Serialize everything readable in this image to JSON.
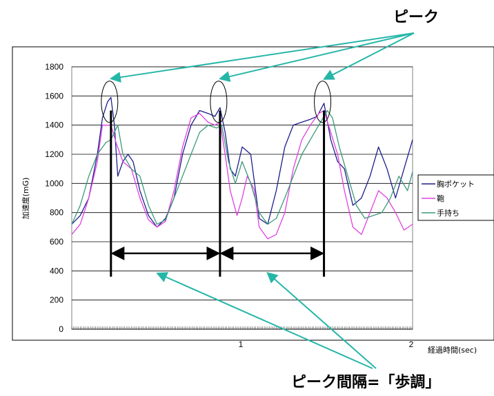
{
  "callouts": {
    "peak": "ピーク",
    "interval": "ピーク間隔=「歩調」"
  },
  "colors": {
    "chest_pocket": "#1c1c8c",
    "bag": "#e040e0",
    "handheld": "#3a9a78",
    "arrow": "#25b6a8"
  },
  "chart_data": {
    "type": "line",
    "title": "",
    "xlabel": "経過時間(sec)",
    "ylabel": "加速度(mG)",
    "xlim": [
      0,
      2
    ],
    "ylim": [
      0,
      1800
    ],
    "y_ticks": [
      "0",
      "200",
      "400",
      "600",
      "800",
      "1000",
      "1200",
      "1400",
      "1600",
      "1800"
    ],
    "x_ticks": [
      "1",
      "2"
    ],
    "grid": "horizontal",
    "legend_position": "right",
    "peak_times": [
      0.23,
      0.87,
      1.48
    ],
    "series": [
      {
        "name": "胸ポケット",
        "x": [
          0,
          0.05,
          0.1,
          0.15,
          0.18,
          0.21,
          0.23,
          0.25,
          0.27,
          0.3,
          0.33,
          0.36,
          0.4,
          0.45,
          0.5,
          0.55,
          0.6,
          0.65,
          0.7,
          0.75,
          0.8,
          0.84,
          0.87,
          0.9,
          0.93,
          0.96,
          1.0,
          1.05,
          1.1,
          1.15,
          1.2,
          1.25,
          1.3,
          1.35,
          1.4,
          1.44,
          1.48,
          1.52,
          1.56,
          1.6,
          1.65,
          1.7,
          1.75,
          1.8,
          1.85,
          1.9,
          1.95,
          2.0
        ],
        "y": [
          720,
          780,
          900,
          1200,
          1450,
          1560,
          1590,
          1400,
          1050,
          1150,
          1200,
          1150,
          950,
          780,
          700,
          760,
          900,
          1200,
          1400,
          1500,
          1480,
          1460,
          1520,
          1350,
          1100,
          1050,
          1250,
          1200,
          760,
          720,
          950,
          1250,
          1400,
          1420,
          1440,
          1460,
          1550,
          1300,
          1150,
          1100,
          850,
          900,
          1050,
          1250,
          1100,
          900,
          1100,
          1300
        ]
      },
      {
        "name": "鞄",
        "x": [
          0,
          0.05,
          0.1,
          0.15,
          0.18,
          0.21,
          0.23,
          0.26,
          0.3,
          0.35,
          0.4,
          0.45,
          0.5,
          0.55,
          0.6,
          0.65,
          0.7,
          0.75,
          0.8,
          0.84,
          0.87,
          0.9,
          0.93,
          0.97,
          1.0,
          1.03,
          1.07,
          1.1,
          1.15,
          1.2,
          1.25,
          1.3,
          1.35,
          1.4,
          1.45,
          1.48,
          1.52,
          1.56,
          1.6,
          1.65,
          1.7,
          1.75,
          1.8,
          1.85,
          1.9,
          1.95,
          2.0
        ],
        "y": [
          650,
          720,
          900,
          1150,
          1400,
          1400,
          1400,
          1280,
          1150,
          1100,
          900,
          750,
          700,
          740,
          950,
          1250,
          1450,
          1480,
          1420,
          1400,
          1420,
          1200,
          950,
          780,
          900,
          1050,
          960,
          700,
          620,
          650,
          800,
          1100,
          1300,
          1400,
          1480,
          1500,
          1350,
          1200,
          950,
          700,
          650,
          800,
          950,
          900,
          800,
          680,
          720
        ]
      },
      {
        "name": "手持ち",
        "x": [
          0,
          0.05,
          0.1,
          0.15,
          0.2,
          0.23,
          0.27,
          0.3,
          0.35,
          0.4,
          0.45,
          0.5,
          0.55,
          0.6,
          0.65,
          0.7,
          0.75,
          0.8,
          0.85,
          0.88,
          0.92,
          0.96,
          1.0,
          1.05,
          1.1,
          1.15,
          1.2,
          1.25,
          1.3,
          1.35,
          1.4,
          1.45,
          1.5,
          1.53,
          1.57,
          1.62,
          1.67,
          1.72,
          1.77,
          1.82,
          1.87,
          1.92,
          1.97,
          2.0
        ],
        "y": [
          720,
          850,
          1050,
          1200,
          1280,
          1300,
          1400,
          1200,
          1100,
          1050,
          850,
          720,
          750,
          900,
          1050,
          1200,
          1350,
          1400,
          1380,
          1400,
          1150,
          1000,
          1150,
          1000,
          800,
          720,
          760,
          900,
          1050,
          1200,
          1300,
          1400,
          1500,
          1450,
          1250,
          1050,
          850,
          760,
          780,
          800,
          900,
          1050,
          950,
          1080
        ]
      }
    ]
  }
}
